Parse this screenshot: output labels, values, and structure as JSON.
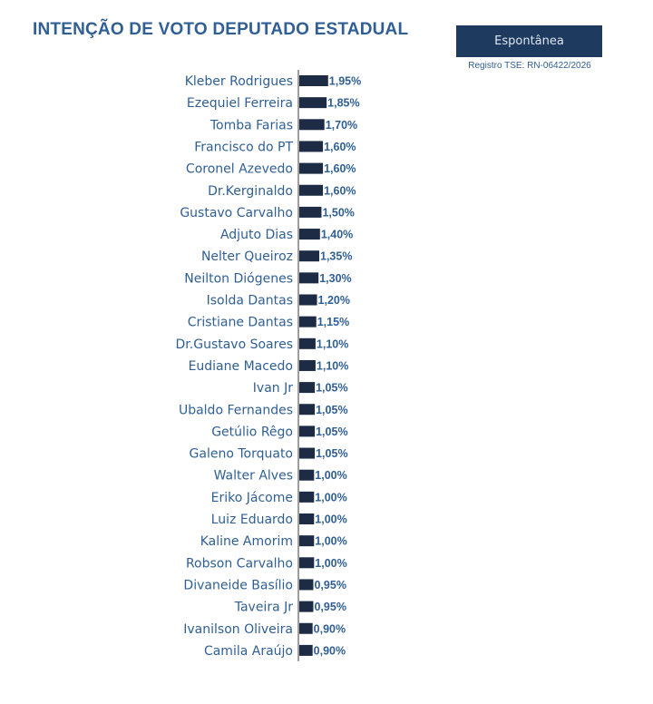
{
  "title": "INTENÇÃO DE VOTO DEPUTADO ESTADUAL",
  "badge_label": "Espontânea",
  "registro": "Registro TSE: RN-06422/2026",
  "colors": {
    "title": "#2f5f95",
    "bar": "#1d2b45",
    "badge_bg": "#1f3a5f",
    "axis": "#3b3b3b"
  },
  "chart_data": {
    "type": "bar",
    "orientation": "horizontal",
    "categories": [
      "Kleber Rodrigues",
      "Ezequiel Ferreira",
      "Tomba Farias",
      "Francisco do PT",
      "Coronel Azevedo",
      "Dr.Kerginaldo",
      "Gustavo Carvalho",
      "Adjuto Dias",
      "Nelter Queiroz",
      "Neilton Diógenes",
      "Isolda Dantas",
      "Cristiane Dantas",
      "Dr.Gustavo Soares",
      "Eudiane Macedo",
      "Ivan Jr",
      "Ubaldo Fernandes",
      "Getúlio Rêgo",
      "Galeno Torquato",
      "Walter Alves",
      "Eriko Jácome",
      "Luiz Eduardo",
      "Kaline Amorim",
      "Robson Carvalho",
      "Divaneide Basílio",
      "Taveira Jr",
      "Ivanilson Oliveira",
      "Camila Araújo"
    ],
    "values": [
      1.95,
      1.85,
      1.7,
      1.6,
      1.6,
      1.6,
      1.5,
      1.4,
      1.35,
      1.3,
      1.2,
      1.15,
      1.1,
      1.1,
      1.05,
      1.05,
      1.05,
      1.05,
      1.0,
      1.0,
      1.0,
      1.0,
      1.0,
      0.95,
      0.95,
      0.9,
      0.9
    ],
    "value_labels": [
      "1,95%",
      "1,85%",
      "1,70%",
      "1,60%",
      "1,60%",
      "1,60%",
      "1,50%",
      "1,40%",
      "1,35%",
      "1,30%",
      "1,20%",
      "1,15%",
      "1,10%",
      "1,10%",
      "1,05%",
      "1,05%",
      "1,05%",
      "1,05%",
      "1,00%",
      "1,00%",
      "1,00%",
      "1,00%",
      "1,00%",
      "0,95%",
      "0,95%",
      "0,90%",
      "0,90%"
    ],
    "xlabel": "",
    "ylabel": "",
    "grid": false,
    "legend": "none"
  }
}
